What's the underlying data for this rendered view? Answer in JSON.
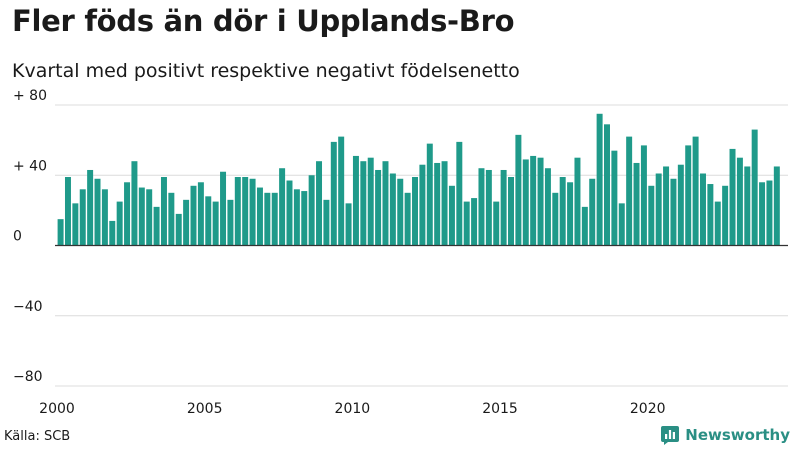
{
  "chart_data": {
    "type": "bar",
    "title": "Fler föds än dör i Upplands-Bro",
    "subtitle": "Kvartal med positivt respektive negativt födelsenetto",
    "xlabel": "",
    "ylabel": "",
    "ylim": [
      -80,
      80
    ],
    "yticks": [
      {
        "value": 80,
        "label": "+ 80"
      },
      {
        "value": 40,
        "label": "+ 40"
      },
      {
        "value": 0,
        "label": "0"
      },
      {
        "value": -40,
        "label": "−40"
      },
      {
        "value": -80,
        "label": "−80"
      }
    ],
    "xticks": [
      {
        "year": 2000,
        "label": "2000"
      },
      {
        "year": 2005,
        "label": "2005"
      },
      {
        "year": 2010,
        "label": "2010"
      },
      {
        "year": 2015,
        "label": "2015"
      },
      {
        "year": 2020,
        "label": "2020"
      }
    ],
    "start_year": 2000,
    "period": "quarter",
    "grid": true,
    "series": [
      {
        "name": "Födelsenetto",
        "color": "#1f9a8a",
        "values": [
          15,
          39,
          24,
          32,
          43,
          38,
          32,
          14,
          25,
          36,
          48,
          33,
          32,
          22,
          39,
          30,
          18,
          26,
          34,
          36,
          28,
          25,
          42,
          26,
          39,
          39,
          38,
          33,
          30,
          30,
          44,
          37,
          32,
          31,
          40,
          48,
          26,
          59,
          62,
          24,
          51,
          48,
          50,
          43,
          48,
          41,
          38,
          30,
          39,
          46,
          58,
          47,
          48,
          34,
          59,
          25,
          27,
          44,
          43,
          25,
          43,
          39,
          63,
          49,
          51,
          50,
          44,
          30,
          39,
          36,
          50,
          22,
          38,
          75,
          69,
          54,
          24,
          62,
          47,
          57,
          34,
          41,
          45,
          38,
          46,
          57,
          62,
          41,
          35,
          25,
          34,
          55,
          50,
          45,
          66,
          36,
          37,
          45
        ]
      }
    ]
  },
  "footer": {
    "source": "Källa: SCB",
    "brand": "Newsworthy",
    "brand_color": "#2a8f84"
  }
}
